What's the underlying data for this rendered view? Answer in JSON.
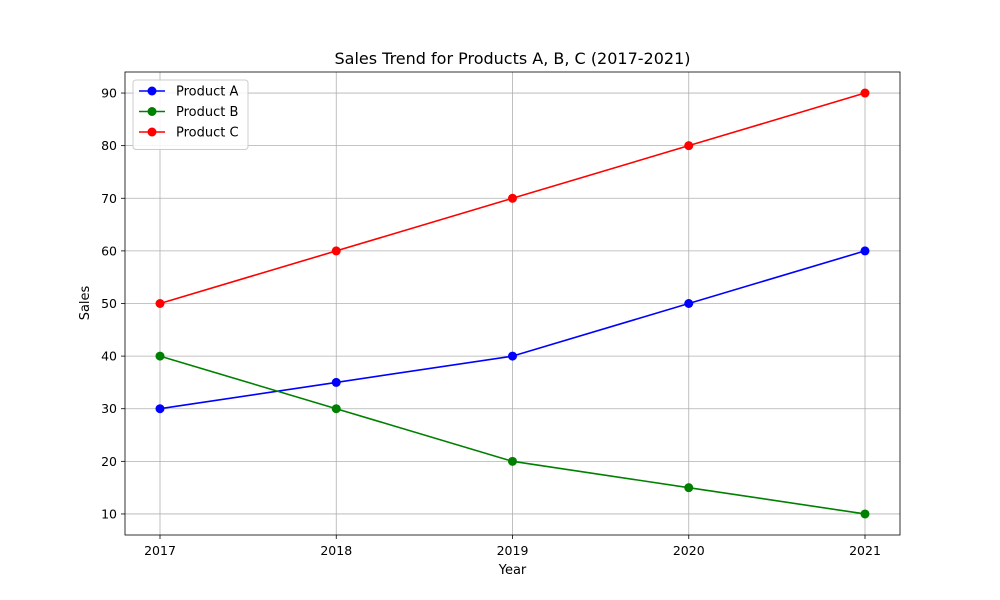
{
  "chart_data": {
    "type": "line",
    "title": "Sales Trend for Products A, B, C (2017-2021)",
    "xlabel": "Year",
    "ylabel": "Sales",
    "x": [
      "2017",
      "2018",
      "2019",
      "2020",
      "2021"
    ],
    "ylim": [
      6,
      94
    ],
    "yticks": [
      10,
      20,
      30,
      40,
      50,
      60,
      70,
      80,
      90
    ],
    "grid": true,
    "legend": "top-left",
    "series": [
      {
        "name": "Product A",
        "color": "#0000ff",
        "values": [
          30,
          35,
          40,
          50,
          60
        ]
      },
      {
        "name": "Product B",
        "color": "#008000",
        "values": [
          40,
          30,
          20,
          15,
          10
        ]
      },
      {
        "name": "Product C",
        "color": "#ff0000",
        "values": [
          50,
          60,
          70,
          80,
          90
        ]
      }
    ]
  }
}
